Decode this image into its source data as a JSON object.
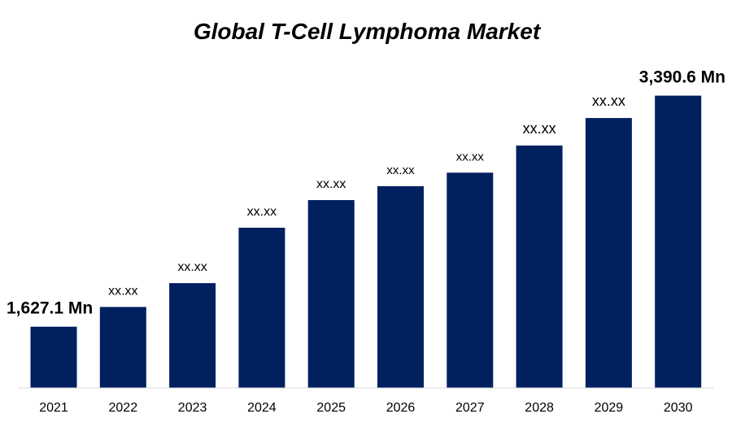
{
  "chart_data": {
    "type": "bar",
    "title": "Global T-Cell Lymphoma Market",
    "xlabel": "",
    "ylabel": "",
    "categories": [
      "2021",
      "2022",
      "2023",
      "2024",
      "2025",
      "2026",
      "2027",
      "2028",
      "2029",
      "2030"
    ],
    "values": [
      1627.1,
      1778,
      1960,
      2383,
      2594,
      2700,
      2803,
      3010,
      3220,
      3390.6
    ],
    "data_labels": [
      "1,627.1 Mn",
      "xx.xx",
      "xx.xx",
      "xx.xx",
      "xx.xx",
      "xx.xx",
      "xx.xx",
      "xx.xx",
      "xx.xx",
      "3,390.6 Mn"
    ],
    "ylim": [
      1160,
      3500
    ],
    "grid": false,
    "bar_color": "#002060"
  }
}
